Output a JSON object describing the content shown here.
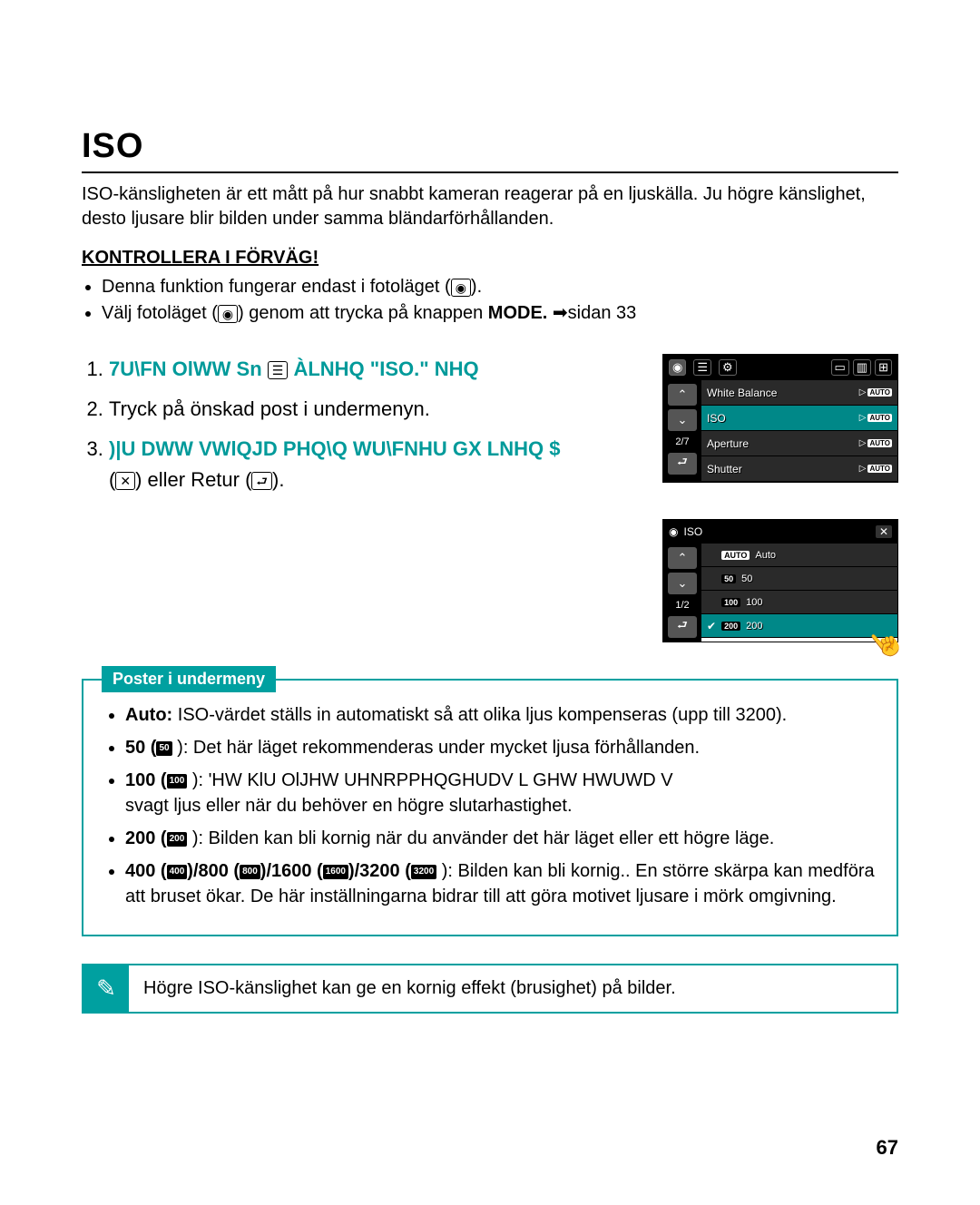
{
  "title": "ISO",
  "intro": "ISO-känsligheten är ett mått på hur snabbt kameran reagerar på en ljuskälla. Ju högre känslighet, desto ljusare blir bilden under samma bländarförhållanden.",
  "check_header": "KONTROLLERA I FÖRVÄG!",
  "check_bullets": [
    "Denna funktion fungerar endast i fotoläget (",
    "Välj fotoläget ("
  ],
  "check_bullet1_suffix": ").",
  "check_bullet2_mid": ") genom att trycka på knappen ",
  "check_bullet2_mode": "MODE.",
  "check_bullet2_suffix": " ➡sidan 33",
  "steps": {
    "s1a": "7U\\FN OlWW Sn ",
    "s1b": "ÀLNHQ ",
    "s1c": "\"ISO.\" NHQ",
    "s2": "Tryck på önskad post i undermenyn.",
    "s3a": ")|U DWW VWlQJD PHQ\\Q WU\\FNHU GX ",
    "s3b": " LNHQ $",
    "s3c": ") eller Retur (",
    "s3d": ")."
  },
  "screen1": {
    "page": "2/7",
    "rows": [
      {
        "label": "White Balance",
        "sel": false
      },
      {
        "label": "ISO",
        "sel": true
      },
      {
        "label": "Aperture",
        "sel": false
      },
      {
        "label": "Shutter",
        "sel": false
      }
    ]
  },
  "screen2": {
    "title": "ISO",
    "page": "1/2",
    "rows": [
      {
        "badge": "AUTO",
        "label": "Auto",
        "auto": true,
        "sel": false
      },
      {
        "badge": "50",
        "label": "50",
        "sel": false
      },
      {
        "badge": "100",
        "label": "100",
        "sel": false
      },
      {
        "badge": "200",
        "label": "200",
        "sel": true
      }
    ]
  },
  "submenu_tag": "Poster i undermeny",
  "submenu": {
    "auto_label": "Auto:",
    "auto_text": " ISO-värdet ställs in automatiskt så att olika ljus kompenseras (upp till 3200).",
    "i50_label": "50 (",
    "i50_text": "): Det här läget rekommenderas under mycket ljusa förhållanden.",
    "i100_label": "100 (",
    "i100_text_a": "): 'HW KlU OlJHW UHNRPPHQGHUDV L GHW HWUWD V",
    "i100_text_b": "svagt ljus eller när du behöver en högre slutarhastighet.",
    "i200_label": "200 (",
    "i200_text": "): Bilden kan bli kornig när du använder det här läget eller ett högre läge.",
    "multi_label_400": "400 (",
    "multi_label_800": ")/800 (",
    "multi_label_1600": ")/1600 (",
    "multi_label_3200": ")/3200 (",
    "multi_text": "): Bilden kan bli kornig.. En större skärpa kan medföra att bruset ökar. De här inställningarna bidrar till att göra motivet ljusare i mörk omgivning."
  },
  "note": "Högre ISO-känslighet kan ge en kornig effekt (brusighet) på bilder.",
  "page_number": "67"
}
